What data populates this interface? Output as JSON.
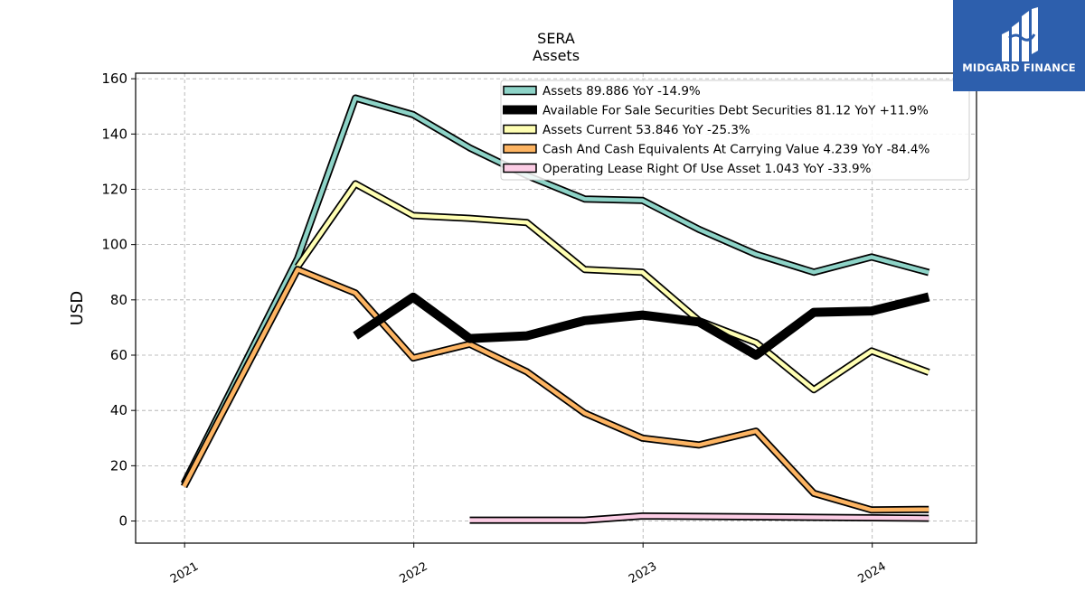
{
  "brand": {
    "name": "MIDGARD FINANCE",
    "logo_icon": "mf-monogram-icon",
    "bg_color": "#2d5fad"
  },
  "chart_data": {
    "type": "line",
    "title": "SERA",
    "subtitle": "Assets",
    "ylabel": "USD",
    "xlabel": "",
    "ylim": [
      -8,
      162
    ],
    "xlim": [
      "2020-10-15",
      "2024-06-15"
    ],
    "yticks": [
      0,
      20,
      40,
      60,
      80,
      100,
      120,
      140,
      160
    ],
    "xticks": [
      {
        "value": "2021-01-01",
        "label": "2021"
      },
      {
        "value": "2022-01-01",
        "label": "2022"
      },
      {
        "value": "2023-01-01",
        "label": "2023"
      },
      {
        "value": "2024-01-01",
        "label": "2024"
      }
    ],
    "grid": true,
    "legend_position": "top-right",
    "series": [
      {
        "name": "Assets",
        "legend": "Assets  89.886 YoY -14.9%",
        "color": "#8dd3c7",
        "x": [
          "2020-12-31",
          "2021-06-30",
          "2021-09-30",
          "2021-12-31",
          "2022-03-31",
          "2022-06-30",
          "2022-09-30",
          "2022-12-31",
          "2023-03-31",
          "2023-06-30",
          "2023-09-30",
          "2023-12-31",
          "2024-03-31"
        ],
        "y": [
          13.5,
          95,
          153,
          147,
          135,
          125,
          116.5,
          116,
          105.5,
          96.5,
          90,
          95.5,
          89.9
        ]
      },
      {
        "name": "Available For Sale Securities Debt Securities",
        "legend": "Available For Sale Securities Debt Securities  81.12 YoY +11.9%",
        "color": "#000000",
        "x": [
          "2021-09-30",
          "2021-12-31",
          "2022-03-31",
          "2022-06-30",
          "2022-09-30",
          "2022-12-31",
          "2023-03-31",
          "2023-06-30",
          "2023-09-30",
          "2023-12-31",
          "2024-03-31"
        ],
        "y": [
          67,
          81,
          66,
          67,
          72.5,
          74.5,
          72,
          60,
          75.5,
          76,
          81.1
        ]
      },
      {
        "name": "Assets Current",
        "legend": "Assets Current  53.846 YoY -25.3%",
        "color": "#ffffb3",
        "x": [
          "2021-06-30",
          "2021-09-30",
          "2021-12-31",
          "2022-03-31",
          "2022-06-30",
          "2022-09-30",
          "2022-12-31",
          "2023-03-31",
          "2023-06-30",
          "2023-09-30",
          "2023-12-31",
          "2024-03-31"
        ],
        "y": [
          92,
          122,
          110.5,
          109.5,
          108,
          91,
          90,
          72.5,
          64.5,
          47.5,
          61.5,
          53.8
        ]
      },
      {
        "name": "Cash And Cash Equivalents At Carrying Value",
        "legend": "Cash And Cash Equivalents At Carrying Value  4.239 YoY -84.4%",
        "color": "#fdb462",
        "x": [
          "2020-12-31",
          "2021-06-30",
          "2021-09-30",
          "2021-12-31",
          "2022-03-31",
          "2022-06-30",
          "2022-09-30",
          "2022-12-31",
          "2023-03-31",
          "2023-06-30",
          "2023-09-30",
          "2023-12-31",
          "2024-03-31"
        ],
        "y": [
          12.5,
          91,
          82.5,
          59,
          64,
          54,
          39,
          30,
          27.5,
          32.5,
          10,
          4,
          4.2
        ]
      },
      {
        "name": "Operating Lease Right Of Use Asset",
        "legend": "Operating Lease Right Of Use Asset  1.043 YoY -33.9%",
        "color": "#fccde5",
        "x": [
          "2022-03-31",
          "2022-09-30",
          "2022-12-31",
          "2023-06-30",
          "2024-03-31"
        ],
        "y": [
          0.3,
          0.3,
          1.8,
          1.5,
          1.0
        ]
      }
    ]
  }
}
